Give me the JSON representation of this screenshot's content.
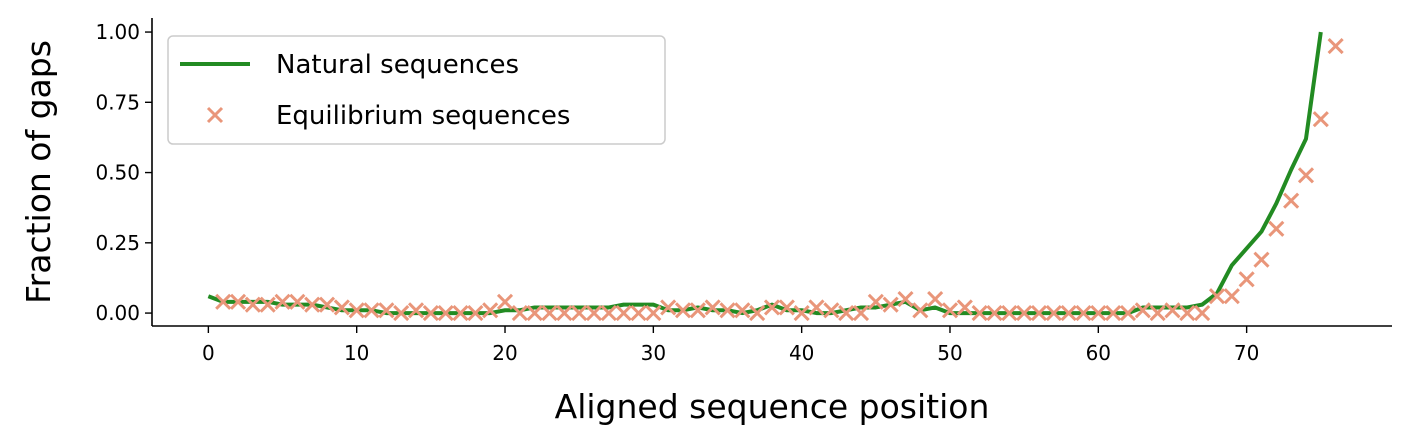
{
  "chart_data": {
    "type": "line",
    "x_label": "Aligned sequence position",
    "y_label": "Fraction of gaps",
    "xlim": [
      -3.8,
      79.8
    ],
    "ylim": [
      -0.046,
      1.05
    ],
    "xticks": [
      0,
      10,
      20,
      30,
      40,
      50,
      60,
      70
    ],
    "yticks": [
      {
        "value": 0,
        "label": "0.00"
      },
      {
        "value": 0.25,
        "label": "0.25"
      },
      {
        "value": 0.5,
        "label": "0.50"
      },
      {
        "value": 0.75,
        "label": "0.75"
      },
      {
        "value": 1,
        "label": "1.00"
      }
    ],
    "legend": "upper left",
    "series": [
      {
        "name": "Natural sequences",
        "type": "line",
        "color": "#228b22",
        "x": [
          0,
          1,
          2,
          3,
          4,
          5,
          6,
          7,
          8,
          9,
          10,
          11,
          12,
          13,
          14,
          15,
          16,
          17,
          18,
          19,
          20,
          21,
          22,
          23,
          24,
          25,
          26,
          27,
          28,
          29,
          30,
          31,
          32,
          33,
          34,
          35,
          36,
          37,
          38,
          39,
          40,
          41,
          42,
          43,
          44,
          45,
          46,
          47,
          48,
          49,
          50,
          51,
          52,
          53,
          54,
          55,
          56,
          57,
          58,
          59,
          60,
          61,
          62,
          63,
          64,
          65,
          66,
          67,
          68,
          69,
          70,
          71,
          72,
          73,
          74,
          75
        ],
        "values": [
          0.06,
          0.04,
          0.04,
          0.04,
          0.04,
          0.03,
          0.03,
          0.03,
          0.02,
          0.01,
          0.01,
          0.01,
          0,
          0,
          0,
          0,
          0,
          0,
          0,
          0,
          0.01,
          0.01,
          0.02,
          0.02,
          0.02,
          0.02,
          0.02,
          0.02,
          0.03,
          0.03,
          0.03,
          0.01,
          0.01,
          0.02,
          0.01,
          0.01,
          0,
          0.01,
          0.03,
          0.01,
          0.01,
          0,
          0,
          0.01,
          0.02,
          0.02,
          0.03,
          0.04,
          0.01,
          0.02,
          0,
          0,
          0,
          0,
          0,
          0,
          0,
          0,
          0,
          0,
          0,
          0,
          0,
          0.02,
          0.02,
          0.02,
          0.02,
          0.03,
          0.07,
          0.17,
          0.23,
          0.29,
          0.39,
          0.51,
          0.62,
          1.0
        ]
      },
      {
        "name": "Equilibrium sequences",
        "type": "scatter",
        "color": "#e9967a",
        "x": [
          1,
          2,
          3,
          4,
          5,
          6,
          7,
          8,
          9,
          10,
          11,
          12,
          13,
          14,
          15,
          16,
          17,
          18,
          19,
          20,
          21,
          22,
          23,
          24,
          25,
          26,
          27,
          28,
          29,
          30,
          31,
          32,
          33,
          34,
          35,
          36,
          37,
          38,
          39,
          40,
          41,
          42,
          43,
          44,
          45,
          46,
          47,
          48,
          49,
          50,
          51,
          52,
          53,
          54,
          55,
          56,
          57,
          58,
          59,
          60,
          61,
          62,
          63,
          64,
          65,
          66,
          67,
          68,
          69,
          70,
          71,
          72,
          73,
          74,
          75,
          76
        ],
        "values": [
          0.04,
          0.04,
          0.03,
          0.03,
          0.04,
          0.04,
          0.03,
          0.03,
          0.02,
          0.01,
          0.01,
          0.01,
          0,
          0.01,
          0,
          0,
          0,
          0,
          0.01,
          0.04,
          0,
          0,
          0,
          0,
          0,
          0,
          0,
          0,
          0,
          0,
          0.02,
          0.01,
          0.01,
          0.02,
          0.01,
          0.01,
          0,
          0.02,
          0.02,
          0,
          0.02,
          0.01,
          0,
          0,
          0.04,
          0.03,
          0.05,
          0.01,
          0.05,
          0.01,
          0.02,
          0,
          0,
          0,
          0,
          0,
          0,
          0,
          0,
          0,
          0,
          0,
          0.01,
          0,
          0.01,
          0,
          0,
          0.06,
          0.06,
          0.12,
          0.19,
          0.3,
          0.4,
          0.49,
          0.69,
          0.95
        ]
      }
    ]
  }
}
